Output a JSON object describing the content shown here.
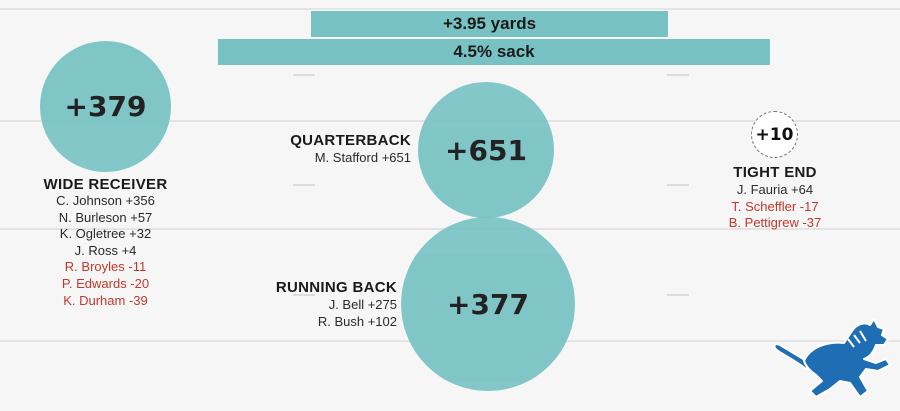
{
  "colors": {
    "bubble": "#78c2c3",
    "positive_text": "#2a2a2a",
    "negative_text": "#c0392b",
    "logo_blue": "#1f6eb4"
  },
  "bars": {
    "yards": "+3.95 yards",
    "sack": "4.5% sack"
  },
  "groups": {
    "wide_receiver": {
      "title": "WIDE RECEIVER",
      "total": "+379",
      "players": [
        {
          "text": "C. Johnson +356",
          "sign": "pos"
        },
        {
          "text": "N. Burleson +57",
          "sign": "pos"
        },
        {
          "text": "K. Ogletree +32",
          "sign": "pos"
        },
        {
          "text": "J. Ross +4",
          "sign": "pos"
        },
        {
          "text": "R. Broyles -11",
          "sign": "neg"
        },
        {
          "text": "P. Edwards -20",
          "sign": "neg"
        },
        {
          "text": "K. Durham -39",
          "sign": "neg"
        }
      ]
    },
    "quarterback": {
      "title": "QUARTERBACK",
      "total": "+651",
      "players": [
        {
          "text": "M. Stafford +651",
          "sign": "pos"
        }
      ]
    },
    "running_back": {
      "title": "RUNNING BACK",
      "total": "+377",
      "players": [
        {
          "text": "J. Bell +275",
          "sign": "pos"
        },
        {
          "text": "R. Bush +102",
          "sign": "pos"
        }
      ]
    },
    "tight_end": {
      "title": "TIGHT END",
      "total": "+10",
      "players": [
        {
          "text": "J. Fauria +64",
          "sign": "pos"
        },
        {
          "text": "T. Scheffler -17",
          "sign": "neg"
        },
        {
          "text": "B. Pettigrew -37",
          "sign": "neg"
        }
      ]
    }
  },
  "logo": {
    "icon": "lion-logo-icon"
  }
}
